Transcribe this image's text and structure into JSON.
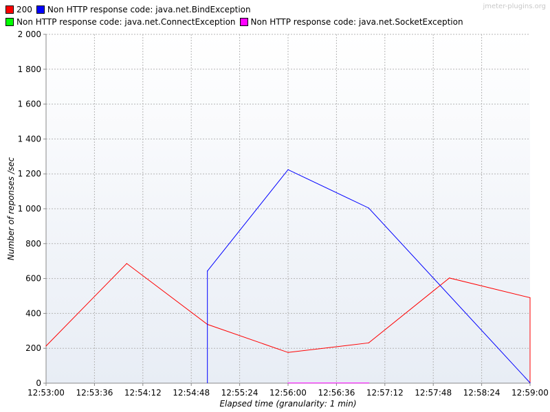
{
  "chart_data": {
    "type": "line",
    "xlabel": "Elapsed time (granularity: 1 min)",
    "ylabel": "Number of reponses /sec",
    "ylim": [
      0,
      2000
    ],
    "yticks": [
      0,
      200,
      400,
      600,
      800,
      1000,
      1200,
      1400,
      1600,
      1800,
      2000
    ],
    "ytick_labels": [
      "0",
      "200",
      "400",
      "600",
      "800",
      "1 000",
      "1 200",
      "1 400",
      "1 600",
      "1 800",
      "2 000"
    ],
    "xticks": [
      "12:53:00",
      "12:53:36",
      "12:54:12",
      "12:54:48",
      "12:55:24",
      "12:56:00",
      "12:56:36",
      "12:57:12",
      "12:57:48",
      "12:58:24",
      "12:59:00"
    ],
    "xlim": [
      "12:53:00",
      "12:59:00"
    ],
    "grid": true,
    "legend_position": "top",
    "watermark": "jmeter-plugins.org",
    "series": [
      {
        "name": "200",
        "color": "#ff0000",
        "x": [
          "12:53:00",
          "12:54:00",
          "12:55:00",
          "12:56:00",
          "12:57:00",
          "12:58:00",
          "12:59:00"
        ],
        "values": [
          213,
          686,
          337,
          176,
          231,
          603,
          490
        ],
        "drop_to_zero_at_end": true
      },
      {
        "name": "Non HTTP response code: java.net.BindException",
        "color": "#0000ff",
        "x": [
          "12:55:00",
          "12:56:00",
          "12:57:00",
          "12:59:00"
        ],
        "values": [
          643,
          1224,
          1004,
          2
        ],
        "rise_from_zero_at_start": true
      },
      {
        "name": "Non HTTP response code: java.net.ConnectException",
        "color": "#00ff00",
        "x": [],
        "values": []
      },
      {
        "name": "Non HTTP response code: java.net.SocketException",
        "color": "#ff00ff",
        "x": [
          "12:56:00",
          "12:57:00"
        ],
        "values": [
          1,
          1
        ]
      }
    ]
  }
}
